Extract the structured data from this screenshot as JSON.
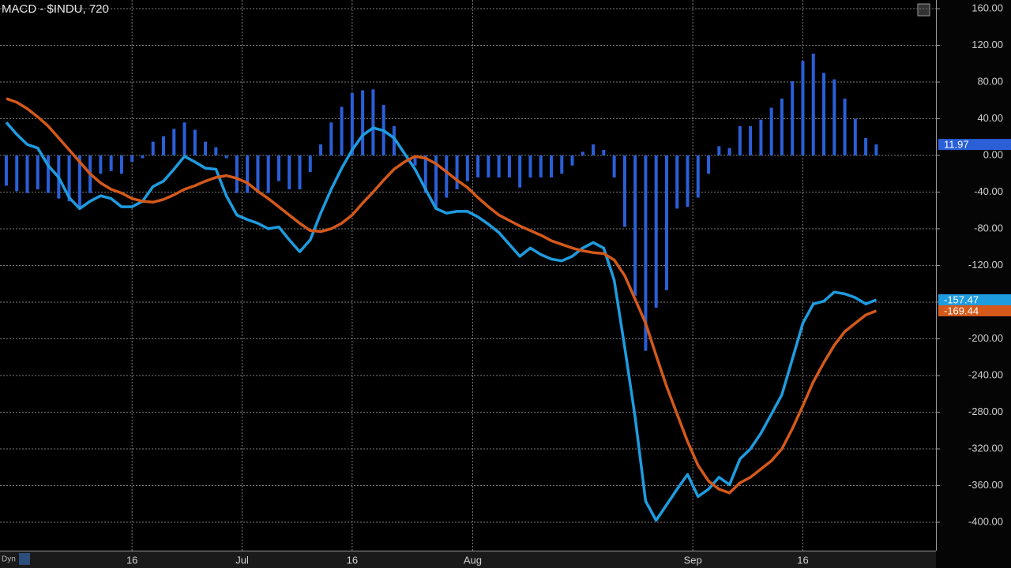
{
  "chart_data": {
    "type": "combo",
    "title": "MACD - $INDU, 720",
    "x": [
      0,
      1,
      2,
      3,
      4,
      5,
      6,
      7,
      8,
      9,
      10,
      11,
      12,
      13,
      14,
      15,
      16,
      17,
      18,
      19,
      20,
      21,
      22,
      23,
      24,
      25,
      26,
      27,
      28,
      29,
      30,
      31,
      32,
      33,
      34,
      35,
      36,
      37,
      38,
      39,
      40,
      41,
      42,
      43,
      44,
      45,
      46,
      47,
      48,
      49,
      50,
      51,
      52,
      53,
      54,
      55,
      56,
      57,
      58,
      59,
      60,
      61,
      62,
      63,
      64,
      65,
      66,
      67,
      68,
      69,
      70,
      71,
      72,
      73,
      74,
      75,
      76,
      77,
      78,
      79,
      80,
      81,
      82,
      83
    ],
    "xlim": [
      -0.6,
      88.7
    ],
    "xticks": [
      {
        "value": 12,
        "label": "16"
      },
      {
        "value": 22.5,
        "label": "Jul"
      },
      {
        "value": 33,
        "label": "16"
      },
      {
        "value": 44.5,
        "label": "Aug"
      },
      {
        "value": 65.5,
        "label": "Sep"
      },
      {
        "value": 76,
        "label": "16"
      }
    ],
    "ylim": [
      -431,
      169.5
    ],
    "yticks": [
      {
        "value": 160,
        "label": "160.00"
      },
      {
        "value": 120,
        "label": "120.00"
      },
      {
        "value": 80,
        "label": "80.00"
      },
      {
        "value": 40,
        "label": "40.00"
      },
      {
        "value": 0,
        "label": "0.00"
      },
      {
        "value": -40,
        "label": "-40.00"
      },
      {
        "value": -80,
        "label": "-80.00"
      },
      {
        "value": -120,
        "label": "-120.00"
      },
      {
        "value": -160,
        "label": "-160.00"
      },
      {
        "value": -200,
        "label": "-200.00"
      },
      {
        "value": -240,
        "label": "-240.00"
      },
      {
        "value": -280,
        "label": "-280.00"
      },
      {
        "value": -320,
        "label": "-320.00"
      },
      {
        "value": -360,
        "label": "-360.00"
      },
      {
        "value": -400,
        "label": "-400.00"
      }
    ],
    "grid": true,
    "series": [
      {
        "type": "bar",
        "color": "#2a5fd8",
        "values": [
          -33,
          -39,
          -41,
          -37,
          -41,
          -47,
          -50,
          -56,
          -41,
          -20,
          -17,
          -20,
          -7,
          -3,
          15,
          21,
          29,
          36,
          28,
          15,
          9,
          -3,
          -41,
          -41,
          -41,
          -41,
          -28,
          -37,
          -37,
          -18,
          12,
          36,
          53,
          68,
          71,
          72,
          55,
          32,
          0,
          -11,
          -41,
          -58,
          -46,
          -37,
          -28,
          -24,
          -24,
          -24,
          -24,
          -35,
          -24,
          -24,
          -24,
          -20,
          -11,
          4,
          12,
          6,
          -24,
          -78,
          -153,
          -213,
          -166,
          -147,
          -58,
          -56,
          -46,
          -20,
          10,
          8,
          32,
          32,
          39,
          52,
          62,
          81,
          103,
          111,
          90,
          83,
          62,
          40,
          19,
          11.97
        ]
      },
      {
        "type": "line",
        "color": "#1e9ce0",
        "values": [
          36,
          23,
          12,
          8,
          -11,
          -24,
          -46,
          -58,
          -50,
          -44,
          -47,
          -56,
          -56,
          -50,
          -34,
          -28,
          -15,
          -1,
          -7,
          -14,
          -15,
          -44,
          -65,
          -70,
          -74,
          -80,
          -78,
          -92,
          -105,
          -92,
          -63,
          -37,
          -14,
          6,
          22,
          30,
          27,
          19,
          2,
          -15,
          -37,
          -58,
          -63,
          -61,
          -61,
          -67,
          -75,
          -84,
          -97,
          -110,
          -101,
          -108,
          -113,
          -115,
          -110,
          -101,
          -95,
          -101,
          -136,
          -209,
          -286,
          -377,
          -398,
          -381,
          -364,
          -348,
          -372,
          -364,
          -351,
          -359,
          -331,
          -320,
          -303,
          -282,
          -261,
          -222,
          -183,
          -162,
          -159,
          -149,
          -151,
          -155,
          -162,
          -157.47
        ]
      },
      {
        "type": "line",
        "color": "#d4591a",
        "values": [
          62,
          58,
          51,
          42,
          32,
          19,
          6,
          -7,
          -20,
          -30,
          -37,
          -41,
          -47,
          -50,
          -51,
          -48,
          -43,
          -37,
          -33,
          -28,
          -24,
          -22,
          -25,
          -30,
          -39,
          -47,
          -56,
          -65,
          -74,
          -82,
          -83,
          -80,
          -74,
          -65,
          -52,
          -40,
          -27,
          -15,
          -7,
          -1,
          -3,
          -9,
          -18,
          -27,
          -35,
          -46,
          -56,
          -65,
          -71,
          -77,
          -82,
          -87,
          -93,
          -97,
          -101,
          -104,
          -106,
          -107,
          -114,
          -131,
          -157,
          -183,
          -218,
          -252,
          -282,
          -312,
          -338,
          -355,
          -364,
          -368,
          -357,
          -351,
          -342,
          -333,
          -320,
          -298,
          -273,
          -247,
          -226,
          -207,
          -192,
          -183,
          -174,
          -169.44
        ]
      }
    ]
  },
  "footer": {
    "label": "Dyn"
  }
}
